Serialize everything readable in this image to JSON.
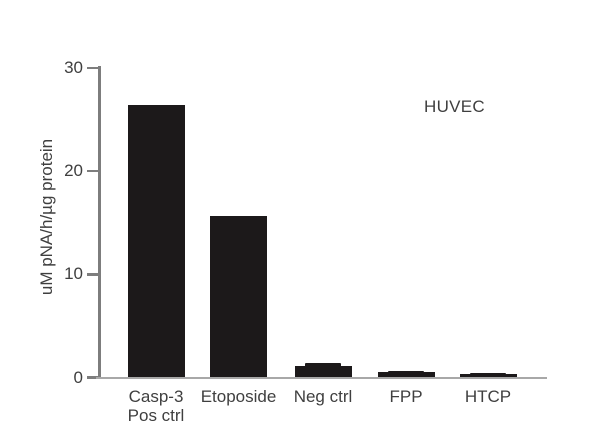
{
  "figure": {
    "background": "#ffffff"
  },
  "chart_data": {
    "type": "bar",
    "title": "",
    "xlabel": "",
    "ylabel": "uM pNA/h/µg protein",
    "annotation": "HUVEC",
    "ylim": [
      0,
      30
    ],
    "yticks": [
      0,
      10,
      20,
      30
    ],
    "ytick_labels": [
      "0",
      "10",
      "20",
      "30"
    ],
    "grid": false,
    "legend_position": "none",
    "categories": [
      [
        "Casp-3",
        "Pos ctrl"
      ],
      [
        "Etoposide"
      ],
      [
        "Neg ctrl"
      ],
      [
        "FPP"
      ],
      [
        "HTCP"
      ]
    ],
    "values": [
      26.4,
      15.7,
      1.1,
      0.55,
      0.3
    ],
    "error_cap_tops": [
      null,
      null,
      1.45,
      0.65,
      0.45
    ],
    "bar_color": "#1c191a",
    "axis_color": "#7d7d7d",
    "xaxis_color": "#a8a8a8",
    "text_color": "#3f3f3f"
  }
}
